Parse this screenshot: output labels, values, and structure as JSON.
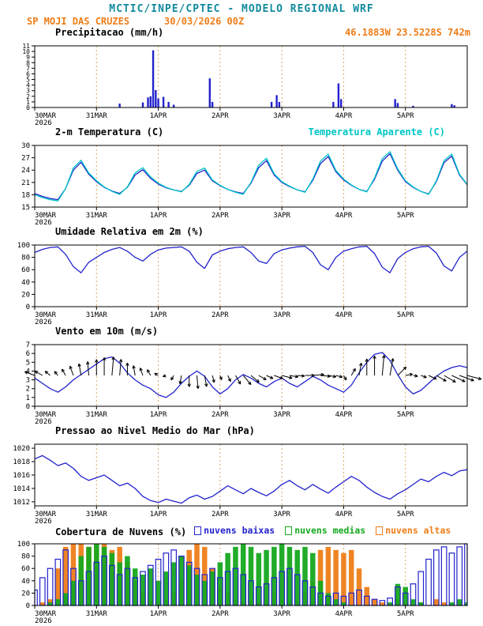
{
  "header": {
    "title": "MCTIC/INPE/CPTEC - MODELO REGIONAL WRF",
    "station": "SP MOJI DAS CRUZES",
    "run": "30/03/2026 00Z",
    "coords": "46.1883W 23.5228S 742m"
  },
  "colors": {
    "header_teal": "#118a9e",
    "orange": "#ee7d18",
    "line_blue": "#2222cc",
    "cyan": "#00c6c6",
    "green": "#15a81f",
    "grid_orange": "#e2a45e",
    "axis_black": "#000000"
  },
  "time_axis": {
    "hours_total": 168,
    "step_hours": 3,
    "tick_hours": [
      0,
      24,
      48,
      72,
      96,
      120,
      144
    ],
    "tick_labels": [
      "30MAR",
      "31MAR",
      "1APR",
      "2APR",
      "3APR",
      "4APR",
      "5APR"
    ],
    "year_label": "2026",
    "grid_hours": [
      24,
      48,
      72,
      96,
      120,
      144
    ]
  },
  "chart_data": [
    {
      "id": "precipitation",
      "type": "bar",
      "title": "Precipitacao (mm/h)",
      "ylim": [
        0,
        11
      ],
      "yticks": [
        0,
        1,
        2,
        3,
        4,
        5,
        6,
        7,
        8,
        9,
        10,
        11
      ],
      "bars": [
        [
          33,
          0.7
        ],
        [
          42,
          0.9
        ],
        [
          44,
          1.8
        ],
        [
          45,
          2.0
        ],
        [
          46,
          10.2
        ],
        [
          47,
          3.1
        ],
        [
          48,
          1.6
        ],
        [
          50,
          1.9
        ],
        [
          52,
          1.0
        ],
        [
          54,
          0.5
        ],
        [
          68,
          5.2
        ],
        [
          69,
          1.0
        ],
        [
          92,
          1.0
        ],
        [
          94,
          2.2
        ],
        [
          95,
          1.0
        ],
        [
          116,
          1.0
        ],
        [
          118,
          4.3
        ],
        [
          119,
          1.5
        ],
        [
          140,
          1.5
        ],
        [
          141,
          0.8
        ],
        [
          147,
          0.3
        ],
        [
          162,
          0.6
        ],
        [
          163,
          0.4
        ]
      ]
    },
    {
      "id": "temperature-2m",
      "type": "line",
      "title": "2-m Temperatura (C)",
      "legend": {
        "label": "Temperatura Aparente (C)",
        "color": "cyan"
      },
      "ylim": [
        15,
        30
      ],
      "yticks": [
        15,
        18,
        21,
        24,
        27,
        30
      ],
      "series": [
        {
          "name": "2-m Temperatura (C)",
          "color": "line_blue",
          "values": [
            18.3,
            17.6,
            17.1,
            16.8,
            19.5,
            24.0,
            25.9,
            23.0,
            21.2,
            19.8,
            18.9,
            18.3,
            19.8,
            22.8,
            24.1,
            22.0,
            20.6,
            19.7,
            19.2,
            18.8,
            20.3,
            23.2,
            24.0,
            21.4,
            20.2,
            19.3,
            18.7,
            18.3,
            20.8,
            24.6,
            26.3,
            22.8,
            21.0,
            20.0,
            19.2,
            18.7,
            21.5,
            25.6,
            27.3,
            23.6,
            21.6,
            20.3,
            19.3,
            18.8,
            21.8,
            26.2,
            28.0,
            24.0,
            21.2,
            19.8,
            18.8,
            18.2,
            21.2,
            25.8,
            27.4,
            22.8,
            20.4
          ]
        },
        {
          "name": "Temperatura Aparente (C)",
          "color": "cyan",
          "values": [
            18.0,
            17.3,
            16.8,
            16.5,
            19.5,
            24.5,
            26.4,
            23.3,
            21.4,
            19.9,
            18.8,
            18.1,
            19.9,
            23.3,
            24.6,
            22.3,
            20.8,
            19.8,
            19.2,
            18.7,
            20.5,
            23.7,
            24.5,
            21.6,
            20.3,
            19.3,
            18.6,
            18.1,
            21.0,
            25.2,
            26.9,
            23.1,
            21.2,
            20.1,
            19.2,
            18.6,
            21.8,
            26.2,
            27.9,
            23.9,
            21.8,
            20.4,
            19.3,
            18.7,
            22.1,
            26.8,
            28.5,
            24.3,
            21.4,
            19.9,
            18.8,
            18.1,
            21.4,
            26.3,
            27.9,
            23.0,
            20.5
          ]
        }
      ]
    },
    {
      "id": "relative-humidity-2m",
      "type": "line",
      "title": "Umidade Relativa em 2m (%)",
      "ylim": [
        0,
        100
      ],
      "yticks": [
        0,
        20,
        40,
        60,
        80,
        100
      ],
      "series": [
        {
          "name": "Umidade Relativa",
          "color": "line_blue",
          "values": [
            88,
            93,
            96,
            97,
            85,
            65,
            55,
            72,
            80,
            88,
            93,
            96,
            90,
            80,
            74,
            85,
            92,
            95,
            96,
            97,
            90,
            72,
            62,
            84,
            90,
            94,
            96,
            97,
            88,
            74,
            70,
            86,
            92,
            95,
            97,
            98,
            88,
            68,
            60,
            80,
            90,
            94,
            97,
            98,
            86,
            64,
            55,
            78,
            88,
            94,
            97,
            98,
            87,
            66,
            58,
            80,
            90
          ]
        }
      ]
    },
    {
      "id": "wind-10m",
      "type": "wind",
      "title": "Vento em 10m (m/s)",
      "ylim": [
        0,
        7
      ],
      "yticks": [
        0,
        1,
        2,
        3,
        4,
        5,
        6,
        7
      ],
      "arrow_anchor": 3.5,
      "series": [
        {
          "name": "Velocidade do Vento",
          "color": "line_blue",
          "values": [
            3.2,
            2.6,
            2.0,
            1.6,
            2.2,
            3.0,
            3.6,
            4.2,
            4.8,
            5.4,
            5.6,
            4.9,
            3.8,
            3.0,
            2.4,
            2.0,
            1.3,
            1.0,
            1.6,
            2.6,
            3.4,
            4.0,
            3.4,
            2.2,
            1.4,
            2.0,
            3.0,
            3.6,
            3.2,
            2.6,
            2.2,
            2.8,
            3.2,
            2.6,
            2.2,
            2.8,
            3.4,
            3.0,
            2.4,
            2.0,
            1.6,
            2.4,
            3.8,
            5.0,
            5.9,
            6.1,
            5.2,
            3.6,
            2.2,
            1.4,
            1.8,
            2.6,
            3.4,
            4.0,
            4.4,
            4.6,
            4.4
          ]
        }
      ],
      "directions_deg": [
        160,
        150,
        140,
        130,
        120,
        110,
        100,
        95,
        90,
        90,
        85,
        85,
        90,
        100,
        110,
        120,
        150,
        200,
        240,
        260,
        270,
        275,
        280,
        285,
        290,
        295,
        300,
        310,
        320,
        330,
        335,
        340,
        345,
        350,
        355,
        0,
        5,
        355,
        350,
        345,
        300,
        60,
        80,
        90,
        90,
        85,
        80,
        45,
        10,
        350,
        340,
        335,
        330,
        330,
        335,
        340,
        345
      ]
    },
    {
      "id": "sea-level-pressure",
      "type": "line",
      "title": "Pressao ao Nivel Medio do Mar (hPa)",
      "ylim": [
        1011.4,
        1020.6
      ],
      "yticks": [
        1012,
        1014,
        1016,
        1018,
        1020
      ],
      "series": [
        {
          "name": "Pressao",
          "color": "line_blue",
          "values": [
            1018.4,
            1018.9,
            1018.2,
            1017.4,
            1017.8,
            1017.0,
            1015.8,
            1015.2,
            1015.6,
            1016.0,
            1015.2,
            1014.4,
            1014.8,
            1014.0,
            1012.8,
            1012.2,
            1011.9,
            1012.4,
            1012.1,
            1011.8,
            1012.6,
            1013.0,
            1012.4,
            1012.8,
            1013.6,
            1014.4,
            1013.8,
            1013.2,
            1014.0,
            1013.4,
            1012.9,
            1013.6,
            1014.6,
            1015.2,
            1014.4,
            1013.8,
            1014.6,
            1013.9,
            1013.3,
            1014.2,
            1015.0,
            1015.8,
            1015.2,
            1014.2,
            1013.4,
            1012.8,
            1012.4,
            1013.2,
            1013.8,
            1014.6,
            1015.4,
            1015.0,
            1015.8,
            1016.4,
            1015.9,
            1016.6,
            1016.8
          ]
        }
      ]
    },
    {
      "id": "cloud-cover",
      "type": "cloudbar",
      "title": "Cobertura de Nuvens (%)",
      "ylim": [
        0,
        100
      ],
      "yticks": [
        0,
        20,
        40,
        60,
        80,
        100
      ],
      "legend": [
        {
          "label": "nuvens baixas",
          "color": "line_blue"
        },
        {
          "label": "nuvens medias",
          "color": "green"
        },
        {
          "label": "nuvens altas",
          "color": "orange"
        }
      ],
      "series": [
        {
          "name": "nuvens altas",
          "color": "orange",
          "style": "solid",
          "values": [
            0,
            5,
            10,
            60,
            95,
            100,
            100,
            95,
            100,
            100,
            90,
            95,
            70,
            40,
            20,
            10,
            5,
            10,
            20,
            40,
            90,
            100,
            95,
            60,
            30,
            20,
            10,
            5,
            10,
            5,
            10,
            20,
            10,
            5,
            10,
            20,
            40,
            90,
            95,
            90,
            85,
            90,
            60,
            30,
            10,
            5,
            0,
            10,
            5,
            0,
            5,
            0,
            10,
            5,
            0,
            5,
            0
          ]
        },
        {
          "name": "nuvens medias",
          "color": "green",
          "style": "solid",
          "values": [
            0,
            0,
            5,
            10,
            20,
            40,
            80,
            95,
            100,
            95,
            85,
            70,
            80,
            60,
            50,
            60,
            40,
            55,
            70,
            80,
            65,
            50,
            40,
            55,
            70,
            85,
            95,
            100,
            95,
            85,
            90,
            95,
            100,
            95,
            90,
            95,
            85,
            40,
            20,
            10,
            5,
            0,
            0,
            0,
            0,
            0,
            5,
            35,
            30,
            10,
            5,
            0,
            0,
            0,
            5,
            10,
            5
          ]
        },
        {
          "name": "nuvens baixas",
          "color": "line_blue",
          "style": "hollow",
          "values": [
            25,
            45,
            60,
            75,
            90,
            60,
            40,
            55,
            70,
            80,
            65,
            50,
            60,
            45,
            55,
            65,
            75,
            85,
            90,
            80,
            70,
            60,
            50,
            60,
            45,
            55,
            60,
            50,
            40,
            30,
            35,
            45,
            55,
            60,
            50,
            40,
            30,
            20,
            15,
            20,
            15,
            20,
            25,
            15,
            10,
            8,
            12,
            30,
            20,
            35,
            55,
            75,
            90,
            95,
            85,
            95,
            100
          ]
        }
      ]
    }
  ]
}
